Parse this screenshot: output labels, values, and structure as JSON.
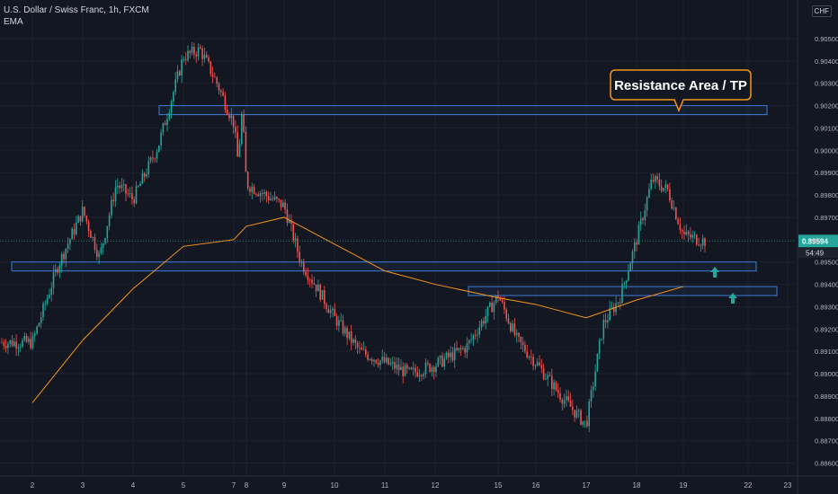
{
  "header": {
    "symbol": "U.S. Dollar / Swiss Franc, 1h, FXCM",
    "indicator": "EMA"
  },
  "currency_label": "CHF",
  "colors": {
    "background": "#131722",
    "up": "#26a69a",
    "down": "#ef5350",
    "ema": "#f7931a",
    "zone": "#3f7bd8",
    "annotation_border": "#f7931a",
    "arrow": "#26a69a"
  },
  "chart_data": {
    "type": "candlestick",
    "y_ticks": [
      "0.90500",
      "0.90400",
      "0.90300",
      "0.90200",
      "0.90100",
      "0.90000",
      "0.89900",
      "0.89800",
      "0.89700",
      "0.89600",
      "0.89500",
      "0.89400",
      "0.89300",
      "0.89200",
      "0.89100",
      "0.89000",
      "0.88900",
      "0.88800",
      "0.88700",
      "0.88600"
    ],
    "x_ticks": [
      "2",
      "3",
      "4",
      "5",
      "7",
      "8",
      "9",
      "10",
      "11",
      "12",
      "15",
      "16",
      "17",
      "18",
      "19",
      "22",
      "23"
    ],
    "last_price": "0.89594",
    "countdown": "54:49",
    "annotation": "Resistance Area / TP",
    "price_path": [
      [
        "2",
        0.8914
      ],
      [
        "2",
        0.8948
      ],
      [
        "3",
        0.8973
      ],
      [
        "3",
        0.8952
      ],
      [
        "3",
        0.8985
      ],
      [
        "4",
        0.8978
      ],
      [
        "4",
        0.9002
      ],
      [
        "5",
        0.9042
      ],
      [
        "5",
        0.9045
      ],
      [
        "5",
        0.903
      ],
      [
        "7",
        0.9012
      ],
      [
        "7",
        0.8995
      ],
      [
        "7",
        0.9018
      ],
      [
        "8",
        0.8985
      ],
      [
        "9",
        0.8975
      ],
      [
        "9",
        0.895
      ],
      [
        "9",
        0.8938
      ],
      [
        "10",
        0.8925
      ],
      [
        "10",
        0.891
      ],
      [
        "11",
        0.8905
      ],
      [
        "11",
        0.89
      ],
      [
        "12",
        0.8904
      ],
      [
        "12",
        0.8912
      ],
      [
        "15",
        0.8935
      ],
      [
        "15",
        0.8915
      ],
      [
        "16",
        0.8905
      ],
      [
        "16",
        0.889
      ],
      [
        "17",
        0.8877
      ],
      [
        "17",
        0.8922
      ],
      [
        "17",
        0.8934
      ],
      [
        "18",
        0.896
      ],
      [
        "18",
        0.8987
      ],
      [
        "18",
        0.8982
      ],
      [
        "19",
        0.8962
      ],
      [
        "19",
        0.8958
      ]
    ],
    "ema": [
      [
        "2",
        0.8887
      ],
      [
        "3",
        0.8915
      ],
      [
        "4",
        0.8938
      ],
      [
        "5",
        0.8957
      ],
      [
        "7",
        0.896
      ],
      [
        "8",
        0.8966
      ],
      [
        "9",
        0.897
      ],
      [
        "10",
        0.8958
      ],
      [
        "11",
        0.8946
      ],
      [
        "12",
        0.894
      ],
      [
        "15",
        0.8934
      ],
      [
        "16",
        0.8931
      ],
      [
        "17",
        0.8925
      ],
      [
        "18",
        0.8933
      ],
      [
        "19",
        0.8939
      ]
    ],
    "zones": [
      {
        "from": "5",
        "to": "22",
        "top": 0.902,
        "bottom": 0.9016
      },
      {
        "from": "2",
        "to": "22",
        "top": 0.895,
        "bottom": 0.8946
      },
      {
        "from": "15",
        "to": "23",
        "top": 0.8939,
        "bottom": 0.8935
      }
    ]
  }
}
